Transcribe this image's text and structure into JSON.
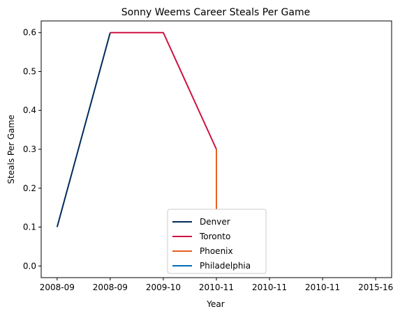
{
  "chart_data": {
    "type": "line",
    "title": "Sonny Weems Career Steals Per Game",
    "xlabel": "Year",
    "ylabel": "Steals Per Game",
    "x_tick_labels": [
      "2008-09",
      "2008-09",
      "2009-10",
      "2010-11",
      "2010-11",
      "2010-11",
      "2015-16"
    ],
    "ylim": [
      -0.03,
      0.63
    ],
    "y_ticks": [
      0.0,
      0.1,
      0.2,
      0.3,
      0.4,
      0.5,
      0.6
    ],
    "grid": false,
    "legend_position": "bottom-center",
    "series": [
      {
        "name": "Denver",
        "color": "#002B5C",
        "points": [
          {
            "x": 0,
            "y": 0.1
          },
          {
            "x": 1,
            "y": 0.6
          }
        ]
      },
      {
        "name": "Toronto",
        "color": "#CE1141",
        "points": [
          {
            "x": 1,
            "y": 0.6
          },
          {
            "x": 2,
            "y": 0.6
          },
          {
            "x": 3,
            "y": 0.3
          }
        ]
      },
      {
        "name": "Phoenix",
        "color": "#E56020",
        "points": [
          {
            "x": 3,
            "y": 0.3
          },
          {
            "x": 3,
            "y": 0.0
          }
        ]
      },
      {
        "name": "Philadelphia",
        "color": "#006BB6",
        "points": []
      }
    ]
  }
}
